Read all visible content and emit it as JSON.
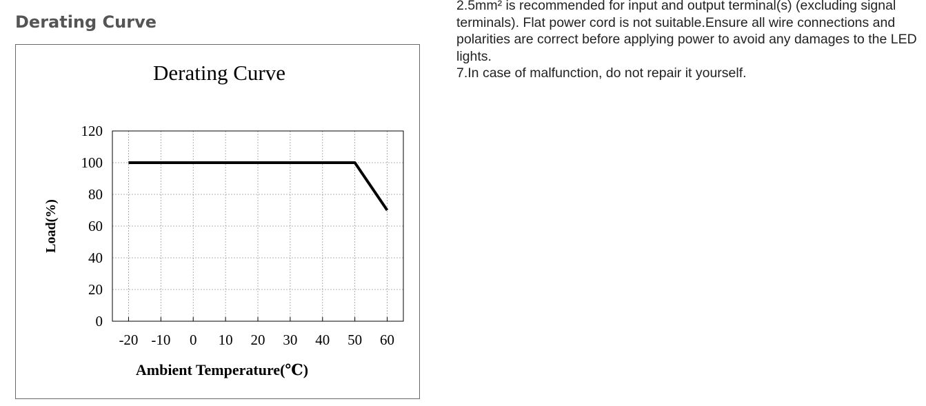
{
  "header": {
    "title": "Derating Curve"
  },
  "chart_data": {
    "type": "line",
    "title": "Derating Curve",
    "x_label": "Ambient Temperature(℃)",
    "y_label": "Load(%)",
    "x": [
      -20,
      50,
      60
    ],
    "series": [
      {
        "color": "#000000",
        "values": [
          100,
          100,
          70
        ]
      }
    ],
    "xlim": [
      -25,
      65
    ],
    "xticks": [
      -20,
      -10,
      0,
      10,
      20,
      30,
      40,
      50,
      60
    ],
    "ylim": [
      0,
      120
    ],
    "yticks": [
      0,
      20,
      40,
      60,
      80,
      100,
      120
    ],
    "grid": true
  },
  "notes": [
    "2.5mm² is recommended for input and output terminal(s) (excluding signal terminals). Flat power cord is not suitable.Ensure all wire connections and polarities are correct before applying power to avoid any damages to the LED lights.",
    "7.In case of malfunction, do not repair it yourself."
  ]
}
